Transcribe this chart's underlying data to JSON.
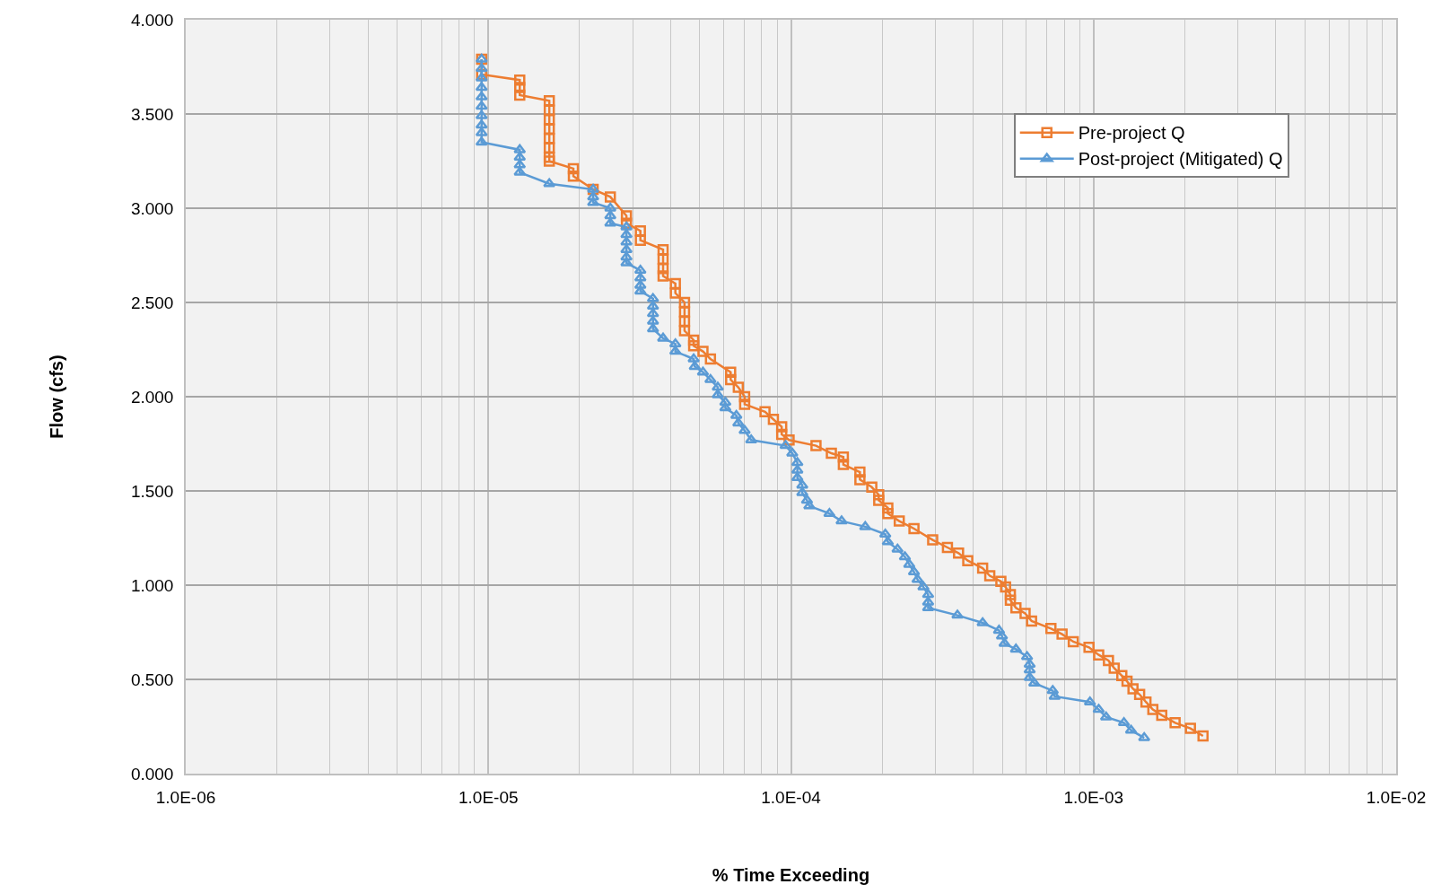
{
  "chart_data": {
    "type": "line",
    "xlabel": "% Time Exceeding",
    "ylabel": "Flow (cfs)",
    "log": "x",
    "grid": true,
    "legend": "top right",
    "line_style": "solid",
    "xlim": [
      1e-06,
      0.01
    ],
    "xticks": [
      {
        "value": 1e-06,
        "label": "1.0E-06"
      },
      {
        "value": 1e-05,
        "label": "1.0E-05"
      },
      {
        "value": 0.0001,
        "label": "1.0E-04"
      },
      {
        "value": 0.001,
        "label": "1.0E-03"
      },
      {
        "value": 0.01,
        "label": "1.0E-02"
      }
    ],
    "ylim": [
      0,
      4
    ],
    "yticks": [
      {
        "value": 0,
        "label": "0.000"
      },
      {
        "value": 0.5,
        "label": "0.500"
      },
      {
        "value": 1,
        "label": "1.000"
      },
      {
        "value": 1.5,
        "label": "1.500"
      },
      {
        "value": 2,
        "label": "2.000"
      },
      {
        "value": 2.5,
        "label": "2.500"
      },
      {
        "value": 3,
        "label": "3.000"
      },
      {
        "value": 3.5,
        "label": "3.500"
      },
      {
        "value": 4,
        "label": "4.000"
      }
    ],
    "series": [
      {
        "name": "Pre-project Q",
        "color": "#ed7d31",
        "marker": "square",
        "x": [
          9.5e-06,
          9.5e-06,
          1.27e-05,
          1.27e-05,
          1.27e-05,
          1.59e-05,
          1.59e-05,
          1.59e-05,
          1.59e-05,
          1.59e-05,
          1.59e-05,
          1.59e-05,
          1.59e-05,
          1.91e-05,
          1.91e-05,
          2.22e-05,
          2.53e-05,
          2.86e-05,
          2.86e-05,
          3.18e-05,
          3.18e-05,
          3.78e-05,
          3.78e-05,
          3.78e-05,
          3.78e-05,
          4.15e-05,
          4.15e-05,
          4.45e-05,
          4.45e-05,
          4.45e-05,
          4.45e-05,
          4.77e-05,
          4.77e-05,
          5.12e-05,
          5.42e-05,
          6.32e-05,
          6.32e-05,
          6.7e-05,
          7.03e-05,
          7.03e-05,
          8.21e-05,
          8.75e-05,
          9.32e-05,
          9.32e-05,
          9.86e-05,
          0.000121,
          0.000136,
          0.000149,
          0.000149,
          0.000169,
          0.000169,
          0.000185,
          0.000195,
          0.000195,
          0.000209,
          0.000209,
          0.000228,
          0.000255,
          0.000294,
          0.000329,
          0.000358,
          0.000384,
          0.00043,
          0.000454,
          0.000494,
          0.000512,
          0.000531,
          0.000531,
          0.000554,
          0.000594,
          0.000624,
          0.000723,
          0.000787,
          0.000857,
          0.000966,
          0.00104,
          0.00112,
          0.00117,
          0.00124,
          0.00129,
          0.00135,
          0.00142,
          0.00149,
          0.00157,
          0.00168,
          0.00186,
          0.00209,
          0.0023
        ],
        "values": [
          3.79,
          3.71,
          3.68,
          3.64,
          3.6,
          3.57,
          3.52,
          3.47,
          3.42,
          3.37,
          3.32,
          3.27,
          3.25,
          3.21,
          3.17,
          3.1,
          3.06,
          2.96,
          2.92,
          2.88,
          2.83,
          2.78,
          2.73,
          2.68,
          2.64,
          2.6,
          2.55,
          2.5,
          2.45,
          2.4,
          2.35,
          2.3,
          2.27,
          2.24,
          2.2,
          2.13,
          2.09,
          2.05,
          2.0,
          1.96,
          1.92,
          1.88,
          1.84,
          1.8,
          1.77,
          1.74,
          1.7,
          1.68,
          1.64,
          1.6,
          1.56,
          1.52,
          1.48,
          1.45,
          1.41,
          1.38,
          1.34,
          1.3,
          1.24,
          1.2,
          1.17,
          1.13,
          1.09,
          1.05,
          1.02,
          0.99,
          0.95,
          0.92,
          0.88,
          0.85,
          0.81,
          0.77,
          0.74,
          0.7,
          0.67,
          0.63,
          0.6,
          0.56,
          0.52,
          0.49,
          0.45,
          0.42,
          0.38,
          0.34,
          0.31,
          0.27,
          0.24,
          0.2
        ]
      },
      {
        "name": "Post-project (Mitigated) Q",
        "color": "#5b9bd5",
        "marker": "triangle",
        "x": [
          9.5e-06,
          9.5e-06,
          9.5e-06,
          9.5e-06,
          9.5e-06,
          9.5e-06,
          9.5e-06,
          9.5e-06,
          9.5e-06,
          9.5e-06,
          1.27e-05,
          1.27e-05,
          1.27e-05,
          1.27e-05,
          1.59e-05,
          2.22e-05,
          2.22e-05,
          2.22e-05,
          2.53e-05,
          2.53e-05,
          2.53e-05,
          2.86e-05,
          2.86e-05,
          2.86e-05,
          2.86e-05,
          2.86e-05,
          2.86e-05,
          3.18e-05,
          3.18e-05,
          3.18e-05,
          3.18e-05,
          3.5e-05,
          3.5e-05,
          3.5e-05,
          3.5e-05,
          3.5e-05,
          3.78e-05,
          4.15e-05,
          4.15e-05,
          4.77e-05,
          4.81e-05,
          5.12e-05,
          5.42e-05,
          5.73e-05,
          5.73e-05,
          6.07e-05,
          6.07e-05,
          6.6e-05,
          6.7e-05,
          7.03e-05,
          7.39e-05,
          9.6e-05,
          0.000101,
          0.000105,
          0.000105,
          0.000105,
          0.000109,
          0.000109,
          0.000113,
          0.000115,
          0.000134,
          0.000147,
          0.000176,
          0.000205,
          0.000209,
          0.000225,
          0.000238,
          0.000246,
          0.000255,
          0.000262,
          0.000274,
          0.000284,
          0.000284,
          0.000284,
          0.000355,
          0.00043,
          0.000487,
          0.000498,
          0.000508,
          0.000554,
          0.000603,
          0.000615,
          0.000615,
          0.000615,
          0.000637,
          0.000733,
          0.000744,
          0.000973,
          0.00104,
          0.0011,
          0.00126,
          0.00133,
          0.00147
        ],
        "values": [
          3.79,
          3.74,
          3.69,
          3.64,
          3.59,
          3.54,
          3.49,
          3.44,
          3.4,
          3.35,
          3.31,
          3.27,
          3.23,
          3.19,
          3.13,
          3.1,
          3.06,
          3.03,
          3.0,
          2.96,
          2.92,
          2.9,
          2.86,
          2.82,
          2.78,
          2.74,
          2.71,
          2.67,
          2.63,
          2.59,
          2.56,
          2.52,
          2.48,
          2.44,
          2.4,
          2.36,
          2.31,
          2.28,
          2.24,
          2.2,
          2.16,
          2.13,
          2.09,
          2.05,
          2.01,
          1.97,
          1.94,
          1.9,
          1.86,
          1.82,
          1.77,
          1.74,
          1.7,
          1.65,
          1.61,
          1.57,
          1.53,
          1.49,
          1.45,
          1.42,
          1.38,
          1.34,
          1.31,
          1.27,
          1.23,
          1.19,
          1.15,
          1.11,
          1.07,
          1.03,
          0.99,
          0.95,
          0.91,
          0.88,
          0.84,
          0.8,
          0.76,
          0.73,
          0.69,
          0.66,
          0.62,
          0.58,
          0.55,
          0.51,
          0.48,
          0.44,
          0.41,
          0.38,
          0.34,
          0.3,
          0.27,
          0.23,
          0.19
        ]
      }
    ]
  }
}
